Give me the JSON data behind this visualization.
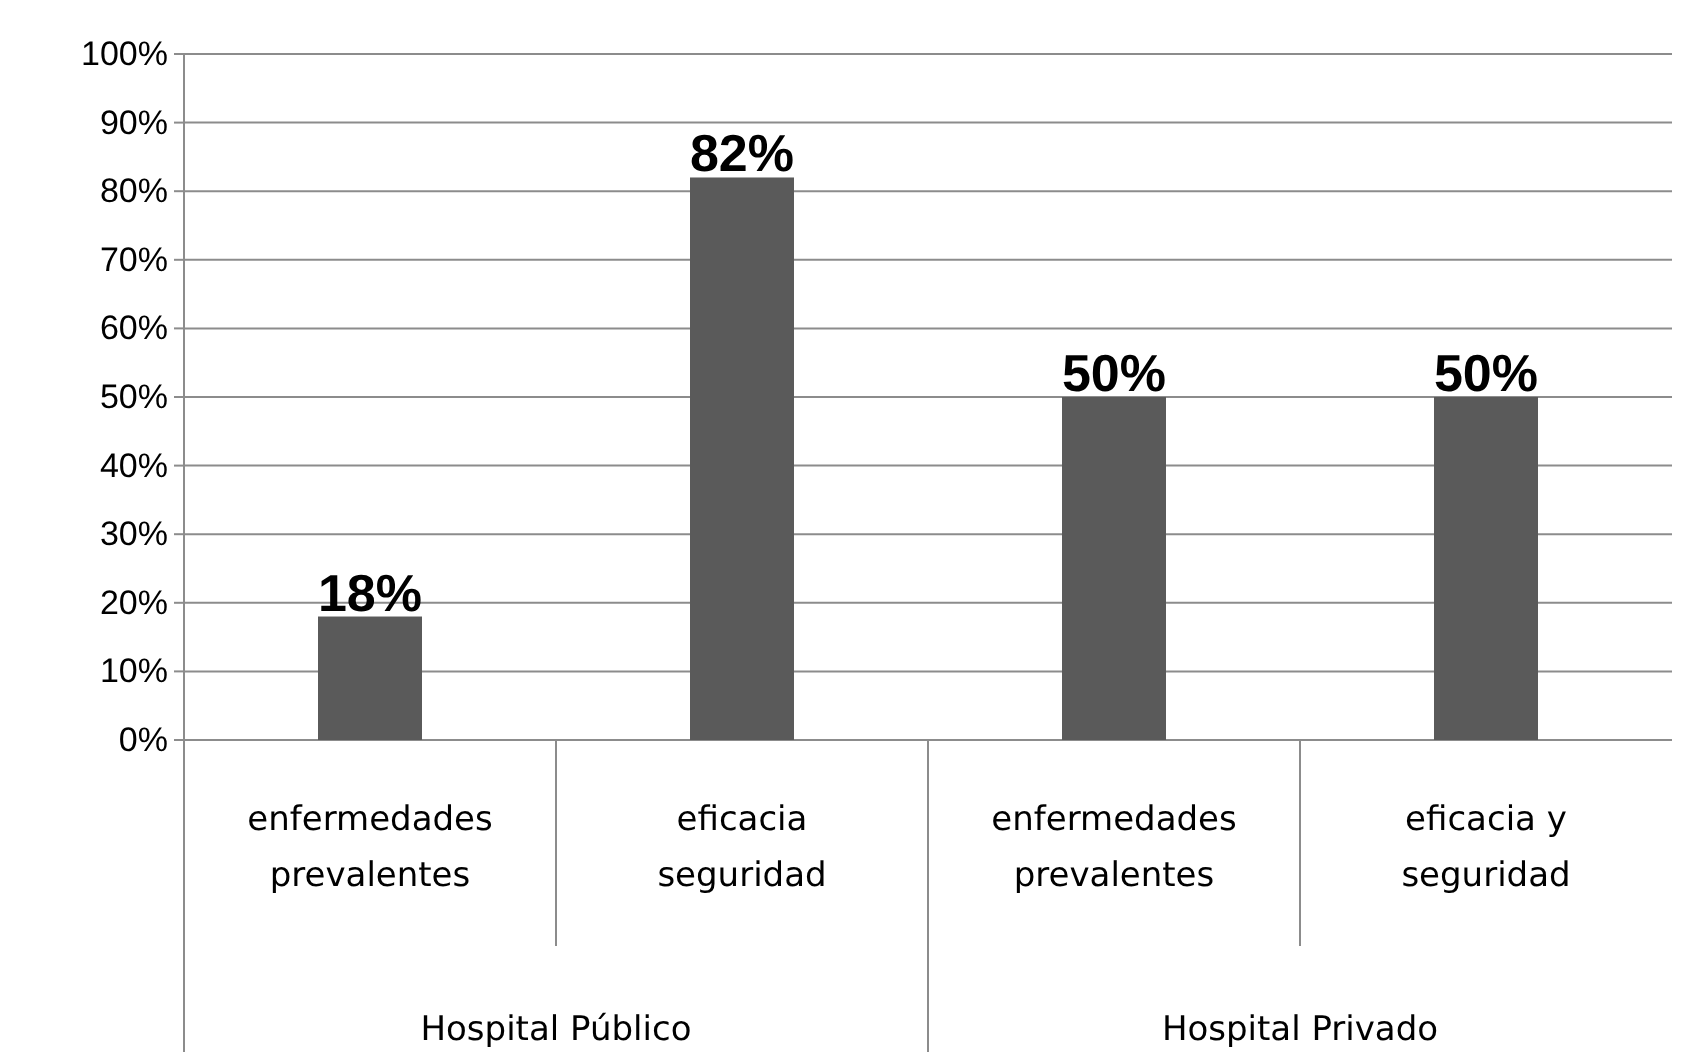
{
  "chart_data": {
    "type": "bar",
    "categories": [
      "enfermedades prevalentes",
      "eficacia seguridad",
      "enfermedades prevalentes",
      "eficacia y seguridad"
    ],
    "values": [
      18,
      82,
      50,
      50
    ],
    "color": "#5a5a5a",
    "ylim": [
      0,
      100
    ],
    "yticks": [
      {
        "value": 0,
        "label": "0%"
      },
      {
        "value": 10,
        "label": "10%"
      },
      {
        "value": 20,
        "label": "20%"
      },
      {
        "value": 30,
        "label": "30%"
      },
      {
        "value": 40,
        "label": "40%"
      },
      {
        "value": 50,
        "label": "50%"
      },
      {
        "value": 60,
        "label": "60%"
      },
      {
        "value": 70,
        "label": "70%"
      },
      {
        "value": 80,
        "label": "80%"
      },
      {
        "value": 90,
        "label": "90%"
      },
      {
        "value": 100,
        "label": "100%"
      }
    ],
    "value_labels": [
      "18%",
      "82%",
      "50%",
      "50%"
    ],
    "annotations": [
      "Hospital Público",
      "Hospital Privado"
    ],
    "grid": "y"
  }
}
